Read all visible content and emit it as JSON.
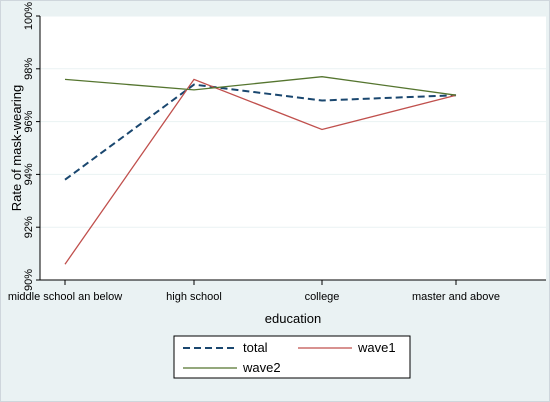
{
  "chart_data": {
    "type": "line",
    "categories": [
      "middle school an below",
      "high school",
      "college",
      "master and above"
    ],
    "series": [
      {
        "name": "total",
        "values": [
          93.8,
          97.4,
          96.8,
          97.0
        ],
        "color": "#1a476f",
        "dash": "dashed"
      },
      {
        "name": "wave1",
        "values": [
          90.6,
          97.6,
          95.7,
          97.0
        ],
        "color": "#c0504d",
        "dash": "solid"
      },
      {
        "name": "wave2",
        "values": [
          97.6,
          97.2,
          97.7,
          97.0
        ],
        "color": "#55752f",
        "dash": "solid"
      }
    ],
    "xlabel": "education",
    "ylabel": "Rate of mask-wearing",
    "ylim": [
      90,
      100
    ],
    "yticks": [
      90,
      92,
      94,
      96,
      98,
      100
    ],
    "ytick_labels": [
      "90%",
      "92%",
      "94%",
      "96%",
      "98%",
      "100%"
    ],
    "grid": "y-major",
    "legend": "bottom"
  },
  "colors": {
    "outer_background": "#eaf2f3",
    "plot_background": "#ffffff",
    "gridline": "#eaf2f3"
  }
}
